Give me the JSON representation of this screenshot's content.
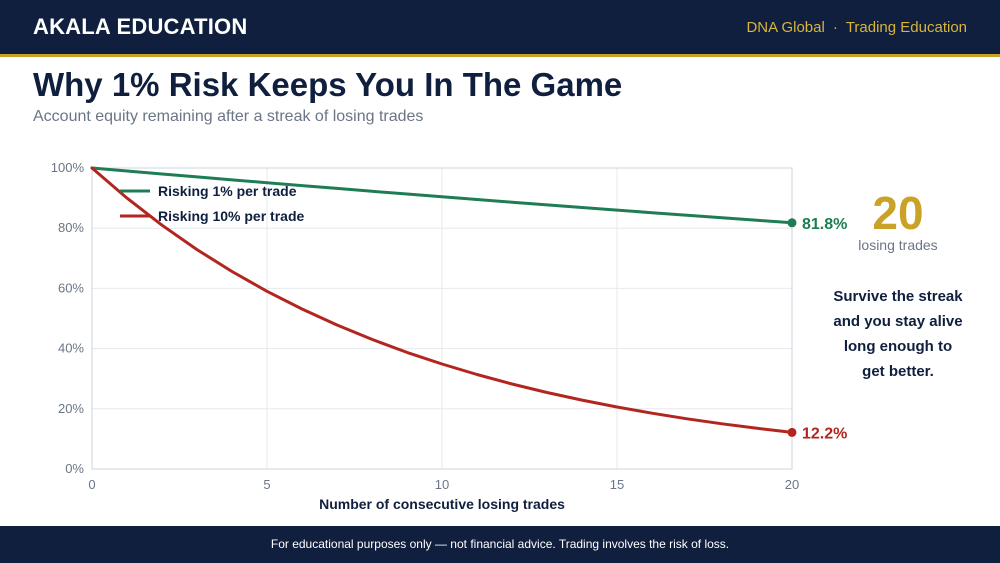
{
  "header": {
    "brand": "AKALA EDUCATION",
    "links": [
      "DNA Global",
      "Trading Education"
    ],
    "separator": "·"
  },
  "title": "Why 1% Risk Keeps You In The Game",
  "subtitle": "Account equity remaining after a streak of losing trades",
  "side_panel": {
    "count": "20",
    "count_label": "losing trades",
    "message": "Survive the streak and you stay alive long enough to get better."
  },
  "footer": "For educational purposes only — not financial advice. Trading involves the risk of loss.",
  "colors": {
    "navy": "#0f1f3d",
    "gold": "#c9a227",
    "series_1pct": "#1e7d55",
    "series_10pct": "#b32620"
  },
  "chart_data": {
    "type": "line",
    "title": "Why 1% Risk Keeps You In The Game",
    "subtitle": "Account equity remaining after a streak of losing trades",
    "xlabel": "Number of consecutive losing trades",
    "ylabel": "",
    "xlim": [
      0,
      20
    ],
    "ylim": [
      0,
      100
    ],
    "x_ticks": [
      0,
      5,
      10,
      15,
      20
    ],
    "y_ticks": [
      0,
      20,
      40,
      60,
      80,
      100
    ],
    "y_tick_labels": [
      "0%",
      "20%",
      "40%",
      "60%",
      "80%",
      "100%"
    ],
    "grid": true,
    "legend_position": "top-left",
    "x": [
      0,
      1,
      2,
      3,
      4,
      5,
      6,
      7,
      8,
      9,
      10,
      11,
      12,
      13,
      14,
      15,
      16,
      17,
      18,
      19,
      20
    ],
    "series": [
      {
        "name": "Risking 1% per trade",
        "color": "#1e7d55",
        "values": [
          100,
          99,
          98.01,
          97.03,
          96.06,
          95.1,
          94.15,
          93.21,
          92.27,
          91.35,
          90.44,
          89.53,
          88.64,
          87.75,
          86.87,
          86.01,
          85.15,
          84.29,
          83.45,
          82.62,
          81.79
        ],
        "end_label": "81.8%"
      },
      {
        "name": "Risking 10% per trade",
        "color": "#b32620",
        "values": [
          100,
          90,
          81,
          72.9,
          65.61,
          59.05,
          53.14,
          47.83,
          43.05,
          38.74,
          34.87,
          31.38,
          28.24,
          25.42,
          22.88,
          20.59,
          18.53,
          16.68,
          15.01,
          13.51,
          12.16
        ],
        "end_label": "12.2%"
      }
    ]
  }
}
